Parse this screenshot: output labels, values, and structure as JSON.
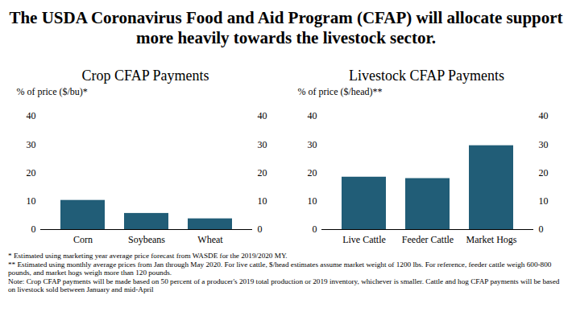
{
  "title": "The USDA Coronavirus Food and Aid Program (CFAP) will allocate support more heavily towards the livestock sector.",
  "notes": [
    "* Estimated using marketing year average price forecast from WASDE for the 2019/2020 MY.",
    "** Estimated using monthly average prices from Jan through May 2020. For live cattle, $/head estimates assume market weight of 1200 lbs. For reference, feeder cattle weigh 600-800 pounds, and market hogs weigh more than 120 pounds.",
    "Note: Crop CFAP payments will be made based on 50 percent of a producer's 2019 total production or 2019 inventory, whichever is smaller. Cattle and hog CFAP payments will be based on livestock sold between January and mid-April"
  ],
  "chart_data": [
    {
      "type": "bar",
      "title": "Crop CFAP Payments",
      "y_label": "% of price ($/bu)*",
      "categories": [
        "Corn",
        "Soybeans",
        "Wheat"
      ],
      "values": [
        10.3,
        5.7,
        3.8
      ],
      "color": "#215d77",
      "ylim": [
        0,
        40
      ],
      "yticks": [
        0,
        10,
        20,
        30,
        40
      ],
      "y2lim": [
        0,
        40
      ],
      "y2ticks": [
        0,
        10,
        20,
        30,
        40
      ],
      "grid": false
    },
    {
      "type": "bar",
      "title": "Livestock CFAP Payments",
      "y_label": "% of price ($/head)**",
      "categories": [
        "Live Cattle",
        "Feeder Cattle",
        "Market Hogs"
      ],
      "values": [
        18.5,
        18.0,
        29.6
      ],
      "color": "#215d77",
      "ylim": [
        0,
        40
      ],
      "yticks": [
        0,
        10,
        20,
        30,
        40
      ],
      "y2lim": [
        0,
        40
      ],
      "y2ticks": [
        0,
        10,
        20,
        30,
        40
      ],
      "grid": false
    }
  ]
}
